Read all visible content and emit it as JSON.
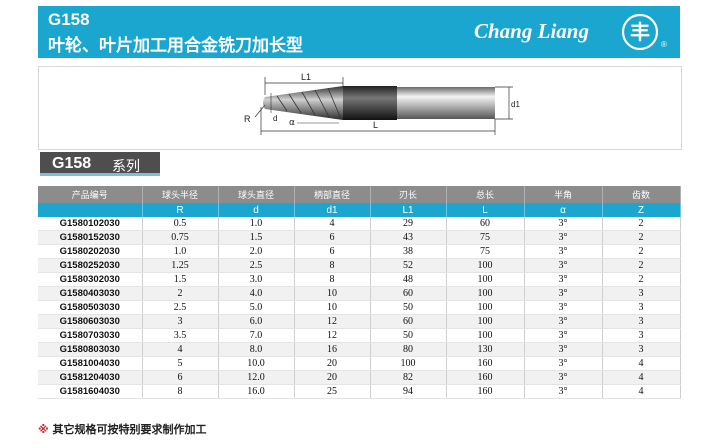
{
  "header": {
    "code": "G158",
    "title": "叶轮、叶片加工用合金铣刀加长型",
    "brand": "Chang Liang",
    "logo_glyph": "丰",
    "reg_mark": "®"
  },
  "diagram": {
    "labels": {
      "L1": "L1",
      "R": "R",
      "alpha": "α",
      "L": "L",
      "d": "d",
      "d1": "d1"
    }
  },
  "series": {
    "code": "G158",
    "name": "系列"
  },
  "table": {
    "columns": [
      "产品编号",
      "球头半径",
      "球头直径",
      "柄部直径",
      "刃长",
      "总长",
      "半角",
      "齿数"
    ],
    "symbols": [
      "",
      "R",
      "d",
      "d1",
      "L1",
      "L",
      "α",
      "Z"
    ],
    "rows": [
      [
        "G1580102030",
        "0.5",
        "1.0",
        "4",
        "29",
        "60",
        "3°",
        "2"
      ],
      [
        "G1580152030",
        "0.75",
        "1.5",
        "6",
        "43",
        "75",
        "3°",
        "2"
      ],
      [
        "G1580202030",
        "1.0",
        "2.0",
        "6",
        "38",
        "75",
        "3°",
        "2"
      ],
      [
        "G1580252030",
        "1.25",
        "2.5",
        "8",
        "52",
        "100",
        "3°",
        "2"
      ],
      [
        "G1580302030",
        "1.5",
        "3.0",
        "8",
        "48",
        "100",
        "3°",
        "2"
      ],
      [
        "G1580403030",
        "2",
        "4.0",
        "10",
        "60",
        "100",
        "3°",
        "3"
      ],
      [
        "G1580503030",
        "2.5",
        "5.0",
        "10",
        "50",
        "100",
        "3°",
        "3"
      ],
      [
        "G1580603030",
        "3",
        "6.0",
        "12",
        "60",
        "100",
        "3°",
        "3"
      ],
      [
        "G1580703030",
        "3.5",
        "7.0",
        "12",
        "50",
        "100",
        "3°",
        "3"
      ],
      [
        "G1580803030",
        "4",
        "8.0",
        "16",
        "80",
        "130",
        "3°",
        "3"
      ],
      [
        "G1581004030",
        "5",
        "10.0",
        "20",
        "100",
        "160",
        "3°",
        "4"
      ],
      [
        "G1581204030",
        "6",
        "12.0",
        "20",
        "82",
        "160",
        "3°",
        "4"
      ],
      [
        "G1581604030",
        "8",
        "16.0",
        "25",
        "94",
        "160",
        "3°",
        "4"
      ]
    ]
  },
  "note": {
    "mark": "※",
    "text": "其它规格可按特别要求制作加工"
  }
}
